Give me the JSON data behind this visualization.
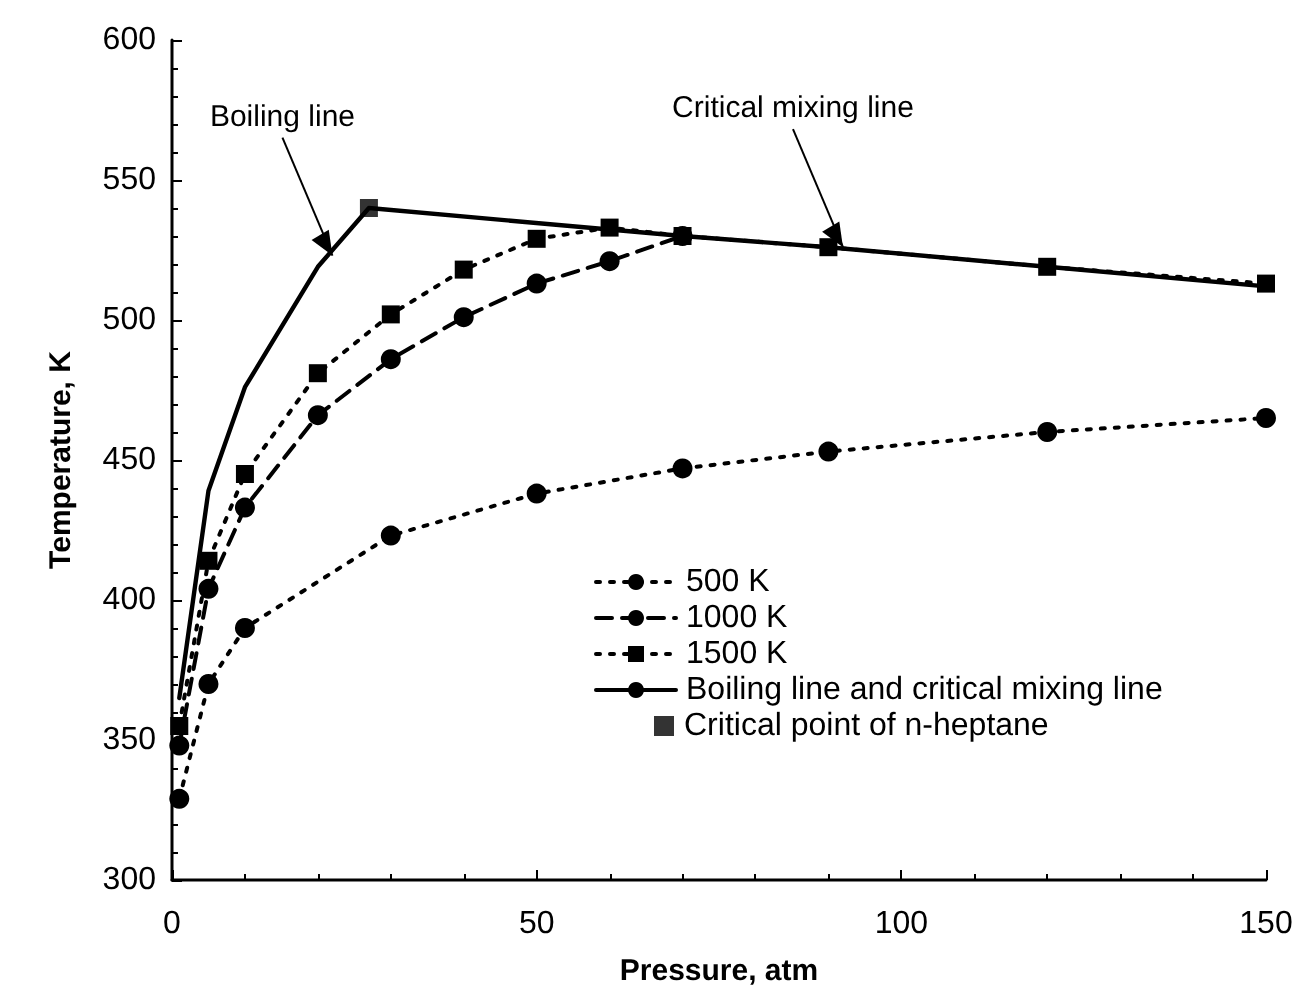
{
  "chart_data": {
    "type": "line",
    "xlabel": "Pressure, atm",
    "ylabel": "Temperature, K",
    "xlim": [
      0,
      150
    ],
    "xticks": [
      0,
      50,
      100,
      150
    ],
    "ylim": [
      300,
      600
    ],
    "yticks": [
      300,
      350,
      400,
      450,
      500,
      550,
      600
    ],
    "grid": false,
    "legend": "bottom right",
    "annotations": [
      {
        "text": "Boiling line",
        "x": 22,
        "y": 523
      },
      {
        "text": "Critical mixing line",
        "x": 92,
        "y": 526
      }
    ],
    "series": [
      {
        "name": "500 K",
        "color": "#000000",
        "marker": "circle",
        "line_style": "dotted",
        "x": [
          1,
          5,
          10,
          30,
          50,
          70,
          90,
          120,
          150
        ],
        "values": [
          329,
          370,
          390,
          423,
          438,
          447,
          453,
          460,
          465
        ]
      },
      {
        "name": "1000 K",
        "color": "#000000",
        "marker": "circle",
        "line_style": "dashed",
        "x": [
          1,
          5,
          10,
          20,
          30,
          40,
          50,
          60,
          70
        ],
        "values": [
          348,
          404,
          433,
          466,
          486,
          501,
          513,
          521,
          530
        ]
      },
      {
        "name": "1500 K",
        "color": "#000000",
        "marker": "square",
        "line_style": "dotted",
        "x": [
          1,
          5,
          10,
          20,
          30,
          40,
          50,
          60,
          70,
          90,
          120,
          150
        ],
        "values": [
          355,
          414,
          445,
          481,
          502,
          518,
          529,
          533,
          530,
          526,
          519,
          513
        ]
      },
      {
        "name": "Boiling line and critical mixing line",
        "color": "#000000",
        "marker": "none",
        "line_style": "solid",
        "x": [
          1,
          5,
          10,
          20,
          27,
          70,
          90,
          120,
          150
        ],
        "values": [
          365,
          439,
          476,
          519,
          540,
          530,
          526,
          519,
          512
        ]
      },
      {
        "name": "Critical point of n-heptane",
        "type": "scatter",
        "color": "#000000",
        "marker": "square",
        "x": [
          27
        ],
        "values": [
          540
        ]
      }
    ]
  }
}
